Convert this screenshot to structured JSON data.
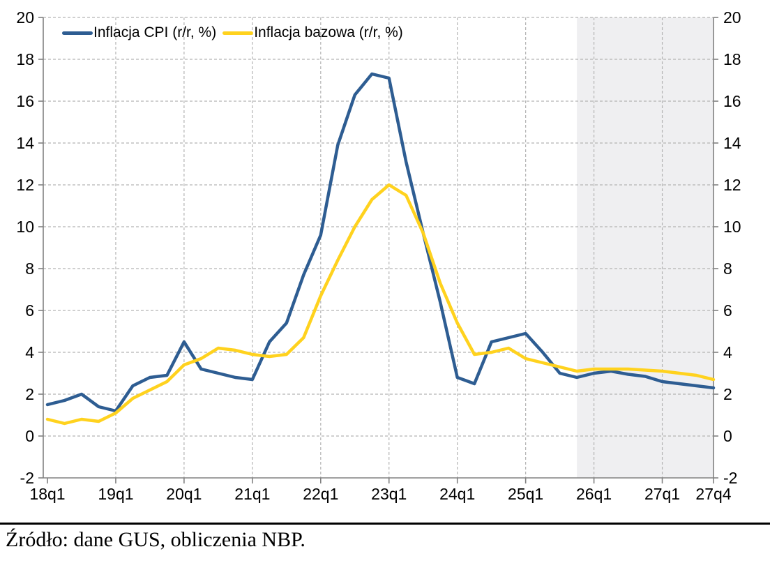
{
  "chart_data": {
    "type": "line",
    "title": "",
    "categories": [
      "18q1",
      "18q2",
      "18q3",
      "18q4",
      "19q1",
      "19q2",
      "19q3",
      "19q4",
      "20q1",
      "20q2",
      "20q3",
      "20q4",
      "21q1",
      "21q2",
      "21q3",
      "21q4",
      "22q1",
      "22q2",
      "22q3",
      "22q4",
      "23q1",
      "23q2",
      "23q3",
      "23q4",
      "24q1",
      "24q2",
      "24q3",
      "24q4",
      "25q1",
      "25q2",
      "25q3",
      "25q4",
      "26q1",
      "26q2",
      "26q3",
      "26q4",
      "27q1",
      "27q2",
      "27q3",
      "27q4"
    ],
    "series": [
      {
        "name": "Inflacja CPI (r/r, %)",
        "color": "#2e5d92",
        "values": [
          1.5,
          1.7,
          2.0,
          1.4,
          1.2,
          2.4,
          2.8,
          2.9,
          4.5,
          3.2,
          3.0,
          2.8,
          2.7,
          4.5,
          5.4,
          7.7,
          9.6,
          13.9,
          16.3,
          17.3,
          17.1,
          13.1,
          9.7,
          6.4,
          2.8,
          2.5,
          4.5,
          4.7,
          4.9,
          4.0,
          3.0,
          2.8,
          3.0,
          3.1,
          2.95,
          2.85,
          2.6,
          2.5,
          2.4,
          2.3
        ]
      },
      {
        "name": "Inflacja bazowa (r/r, %)",
        "color": "#ffd21e",
        "values": [
          0.8,
          0.6,
          0.8,
          0.7,
          1.1,
          1.8,
          2.2,
          2.6,
          3.4,
          3.7,
          4.2,
          4.1,
          3.9,
          3.8,
          3.9,
          4.7,
          6.7,
          8.4,
          10.0,
          11.3,
          12.0,
          11.5,
          9.7,
          7.3,
          5.4,
          3.9,
          4.0,
          4.2,
          3.7,
          3.5,
          3.3,
          3.1,
          3.2,
          3.2,
          3.2,
          3.15,
          3.1,
          3.0,
          2.9,
          2.7
        ]
      }
    ],
    "xlabel": "",
    "ylabel": "",
    "ylim": [
      -2,
      20
    ],
    "y_tick_step": 2,
    "y_tick_labels": [
      "-2",
      "0",
      "2",
      "4",
      "6",
      "8",
      "10",
      "12",
      "14",
      "16",
      "18",
      "20"
    ],
    "x_tick_labels": [
      "18q1",
      "19q1",
      "20q1",
      "21q1",
      "22q1",
      "23q1",
      "24q1",
      "25q1",
      "26q1",
      "27q1",
      "27q4"
    ],
    "grid": "dashed",
    "legend_position": "top",
    "forecast_shading": {
      "start_category": "25q4",
      "end_category": "27q4",
      "color": "#efeff1"
    },
    "colors": {
      "cpi_line": "#2e5d92",
      "core_line": "#ffd21e",
      "forecast_band": "#efeff1",
      "grid": "#b3b3b3",
      "axis": "#808080",
      "text": "#000000"
    }
  },
  "footer": {
    "source_text": "Źródło: dane GUS, obliczenia NBP."
  }
}
